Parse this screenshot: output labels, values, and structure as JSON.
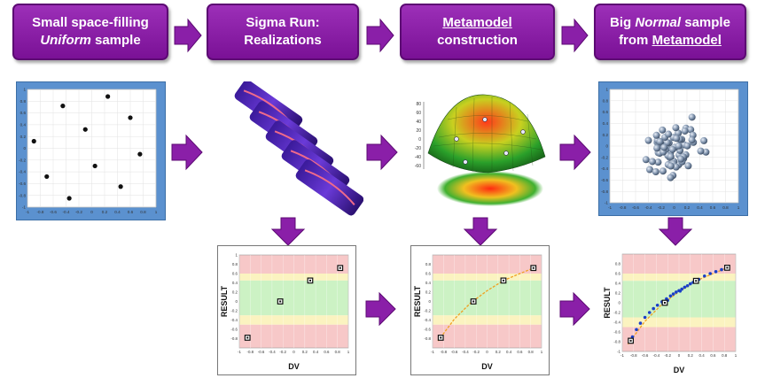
{
  "steps": [
    {
      "line1": "Small space-filling",
      "line2_em": "Uniform",
      "line2_rest": " sample"
    },
    {
      "line1": "Sigma Run:",
      "line2": "Realizations"
    },
    {
      "line1": "Metamodel",
      "line2": "construction"
    },
    {
      "line1_pre": "Big ",
      "line1_em": "Normal",
      "line1_post": " sample",
      "line2_pre": "from ",
      "line2_u": "Metamodel"
    }
  ],
  "colors": {
    "step_fill": "#8a1fa8",
    "arrow": "#8a1fa8",
    "panel_blue": "#5b91cf",
    "band_red": "#f7c8c8",
    "band_yellow": "#fbf3c0",
    "band_green": "#ccf2c4",
    "fit_line": "#f0a020",
    "dense_points": "#1a3fc8"
  },
  "uniform_sample": {
    "x_ticks": [
      "-1",
      "-0.8",
      "-0.6",
      "-0.4",
      "-0.2",
      "0",
      "0.2",
      "0.4",
      "0.6",
      "0.8",
      "1"
    ],
    "y_ticks": [
      "1",
      "0.8",
      "0.6",
      "0.4",
      "0.2",
      "0",
      "-0.2",
      "-0.4",
      "-0.6",
      "-0.8",
      "-1"
    ],
    "points": [
      [
        0.25,
        0.88
      ],
      [
        -0.45,
        0.72
      ],
      [
        0.6,
        0.52
      ],
      [
        -0.1,
        0.32
      ],
      [
        -0.9,
        0.12
      ],
      [
        0.75,
        -0.1
      ],
      [
        0.05,
        -0.3
      ],
      [
        -0.7,
        -0.48
      ],
      [
        0.45,
        -0.65
      ],
      [
        -0.35,
        -0.85
      ]
    ]
  },
  "metamodel_axis_ticks": [
    "80",
    "60",
    "40",
    "20",
    "0",
    "-20",
    "-40",
    "-60"
  ],
  "normal_sample": {
    "x_ticks": [
      "-1",
      "-0.8",
      "-0.6",
      "-0.4",
      "-0.2",
      "0",
      "0.2",
      "0.4",
      "0.6",
      "0.8",
      "1"
    ],
    "y_ticks": [
      "1",
      "0.8",
      "0.6",
      "0.4",
      "0.2",
      "0",
      "-0.2",
      "-0.4",
      "-0.6",
      "-0.8",
      "-1"
    ]
  },
  "chart_data": [
    {
      "type": "scatter",
      "xlabel": "DV",
      "ylabel": "RESULT",
      "xlim": [
        -1,
        1
      ],
      "ylim": [
        -1,
        1
      ],
      "x_ticks": [
        "-1",
        "-0.8",
        "-0.6",
        "-0.4",
        "-0.2",
        "0",
        "0.2",
        "0.4",
        "0.6",
        "0.8",
        "1"
      ],
      "y_ticks": [
        "1",
        "0.8",
        "0.6",
        "0.4",
        "0.2",
        "0",
        "-0.2",
        "-0.4",
        "-0.6",
        "-0.8"
      ],
      "points": [
        {
          "x": -0.85,
          "y": -0.78
        },
        {
          "x": -0.25,
          "y": 0.0
        },
        {
          "x": 0.3,
          "y": 0.45
        },
        {
          "x": 0.85,
          "y": 0.72
        }
      ]
    },
    {
      "type": "scatter",
      "xlabel": "DV",
      "ylabel": "RESULT",
      "xlim": [
        -1,
        1
      ],
      "ylim": [
        -1,
        1
      ],
      "x_ticks": [
        "-1",
        "-0.8",
        "-0.6",
        "-0.4",
        "-0.2",
        "0",
        "0.2",
        "0.4",
        "0.6",
        "0.8",
        "1"
      ],
      "y_ticks": [
        "0.8",
        "0.6",
        "0.4",
        "0.2",
        "0",
        "-0.2",
        "-0.4",
        "-0.6",
        "-0.8"
      ],
      "points": [
        {
          "x": -0.85,
          "y": -0.78
        },
        {
          "x": -0.25,
          "y": 0.0
        },
        {
          "x": 0.3,
          "y": 0.45
        },
        {
          "x": 0.85,
          "y": 0.72
        }
      ],
      "fit_curve": [
        [
          -0.9,
          -0.85
        ],
        [
          -0.6,
          -0.38
        ],
        [
          -0.3,
          -0.03
        ],
        [
          0,
          0.23
        ],
        [
          0.3,
          0.45
        ],
        [
          0.6,
          0.6
        ],
        [
          0.9,
          0.74
        ]
      ]
    },
    {
      "type": "scatter",
      "xlabel": "DV",
      "ylabel": "RESULT",
      "xlim": [
        -1,
        1
      ],
      "ylim": [
        -1,
        1
      ],
      "x_ticks": [
        "-1",
        "-0.8",
        "-0.6",
        "-0.4",
        "-0.2",
        "0",
        "0.2",
        "0.4",
        "0.6",
        "0.8",
        "1"
      ],
      "y_ticks": [
        "0.8",
        "0.6",
        "0.4",
        "0.2",
        "0",
        "-0.2",
        "-0.4",
        "-0.6",
        "-0.8",
        "-1"
      ],
      "points": [
        {
          "x": -0.85,
          "y": -0.78
        },
        {
          "x": -0.25,
          "y": 0.0
        },
        {
          "x": 0.3,
          "y": 0.45
        },
        {
          "x": 0.85,
          "y": 0.72
        }
      ],
      "dense_points": [
        [
          -0.82,
          -0.7
        ],
        [
          -0.75,
          -0.55
        ],
        [
          -0.68,
          -0.42
        ],
        [
          -0.6,
          -0.3
        ],
        [
          -0.52,
          -0.2
        ],
        [
          -0.45,
          -0.12
        ],
        [
          -0.38,
          -0.05
        ],
        [
          -0.3,
          0.02
        ],
        [
          -0.22,
          0.08
        ],
        [
          -0.15,
          0.14
        ],
        [
          -0.1,
          0.18
        ],
        [
          -0.05,
          0.22
        ],
        [
          0.0,
          0.25
        ],
        [
          0.05,
          0.28
        ],
        [
          0.1,
          0.32
        ],
        [
          0.15,
          0.35
        ],
        [
          0.2,
          0.39
        ],
        [
          0.25,
          0.42
        ],
        [
          0.35,
          0.48
        ],
        [
          0.45,
          0.55
        ],
        [
          0.55,
          0.6
        ],
        [
          0.65,
          0.64
        ],
        [
          0.75,
          0.68
        ],
        [
          0.82,
          0.7
        ],
        [
          -0.28,
          -0.02
        ],
        [
          -0.2,
          0.05
        ],
        [
          0.02,
          0.24
        ]
      ],
      "fit_curve": [
        [
          -0.9,
          -0.85
        ],
        [
          -0.6,
          -0.38
        ],
        [
          -0.3,
          -0.03
        ],
        [
          0,
          0.23
        ],
        [
          0.3,
          0.45
        ],
        [
          0.6,
          0.6
        ],
        [
          0.9,
          0.74
        ]
      ]
    }
  ]
}
